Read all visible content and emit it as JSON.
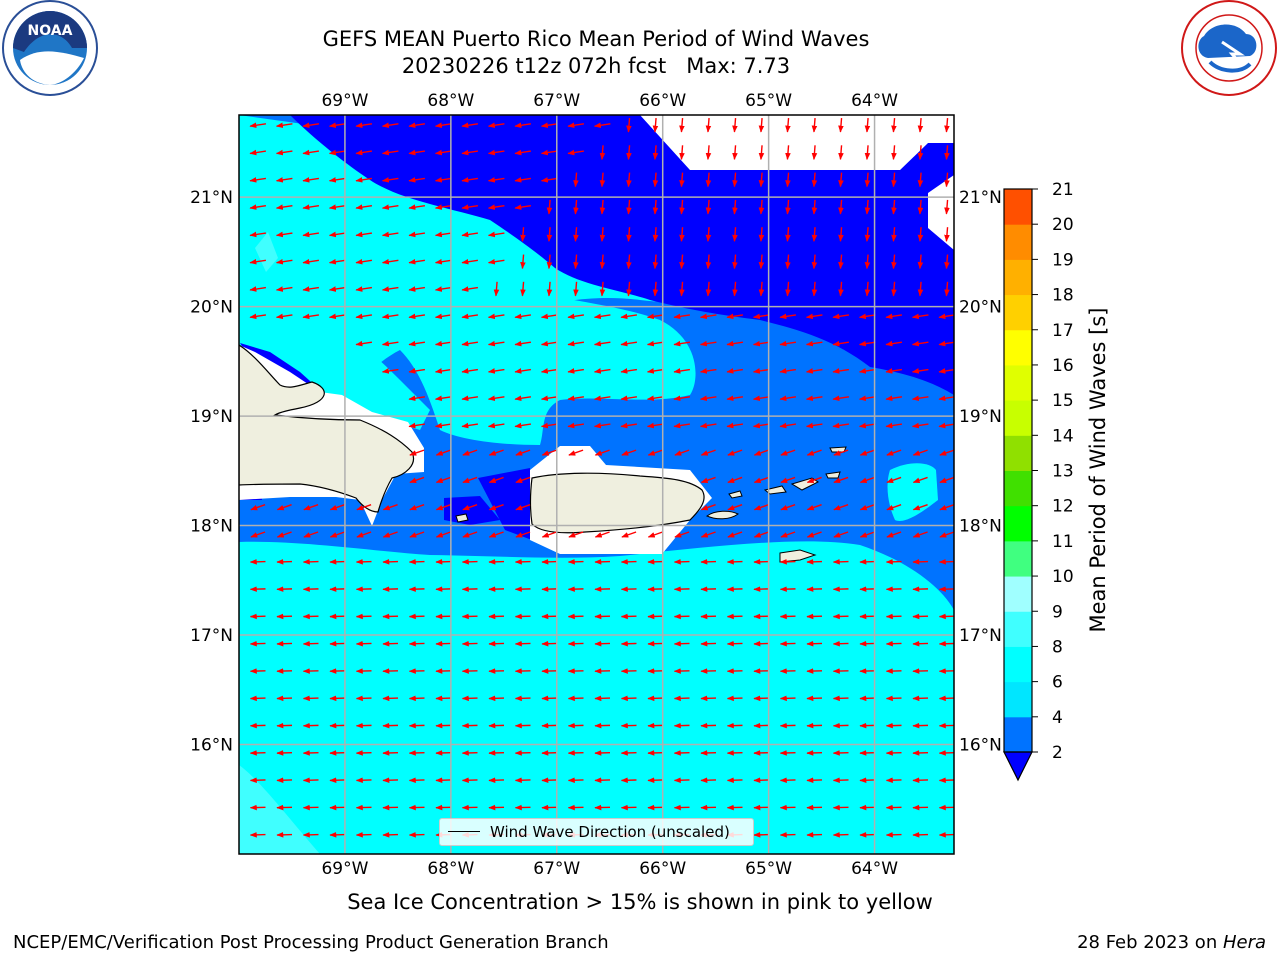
{
  "title": {
    "line1": "GEFS MEAN Puerto Rico Mean Period of Wind Waves",
    "line2": "20230226 t12z 072h fcst   Max: 7.73"
  },
  "logos": {
    "noara_text": "NOAA",
    "noaa_ring": "NATIONAL OCEANIC AND ATMOSPHERIC ADMINISTRATION · U.S. DEPARTMENT OF COMMERCE",
    "nws_ring": "NATIONAL WEATHER SERVICE"
  },
  "map": {
    "lon_range": [
      -70.0,
      -63.25
    ],
    "lat_range": [
      15.0,
      21.75
    ],
    "lon_ticks": [
      "69°W",
      "68°W",
      "67°W",
      "66°W",
      "65°W",
      "64°W"
    ],
    "lon_tick_values": [
      -69,
      -68,
      -67,
      -66,
      -65,
      -64
    ],
    "lat_ticks": [
      "16°N",
      "17°N",
      "18°N",
      "19°N",
      "20°N",
      "21°N"
    ],
    "lat_tick_values": [
      16,
      17,
      18,
      19,
      20,
      21
    ],
    "grid": true,
    "arrow_color": "#ff0000",
    "land_color": "#efefdf"
  },
  "colorbar": {
    "label": "Mean Period of Wind Waves [s]",
    "ticks": [
      "2",
      "4",
      "6",
      "8",
      "9",
      "10",
      "11",
      "12",
      "13",
      "14",
      "15",
      "16",
      "17",
      "18",
      "19",
      "20",
      "21"
    ],
    "colors": [
      "#0073ff",
      "#00e6ff",
      "#00ffff",
      "#40ffff",
      "#a0ffff",
      "#40ff80",
      "#00ff00",
      "#40e000",
      "#90e000",
      "#c8ff00",
      "#e0ff00",
      "#ffff00",
      "#ffd000",
      "#ffb000",
      "#ff8c00",
      "#ff5000",
      "#ff2000",
      "#ff0000"
    ],
    "extend_color": "#0000ff"
  },
  "legend": {
    "label": "Wind Wave Direction (unscaled)"
  },
  "note": "Sea Ice Concentration > 15% is shown in pink to yellow",
  "footer": {
    "left": "NCEP/EMC/Verification Post Processing Product Generation Branch",
    "date": "28 Feb 2023 on ",
    "host": "Hera"
  }
}
